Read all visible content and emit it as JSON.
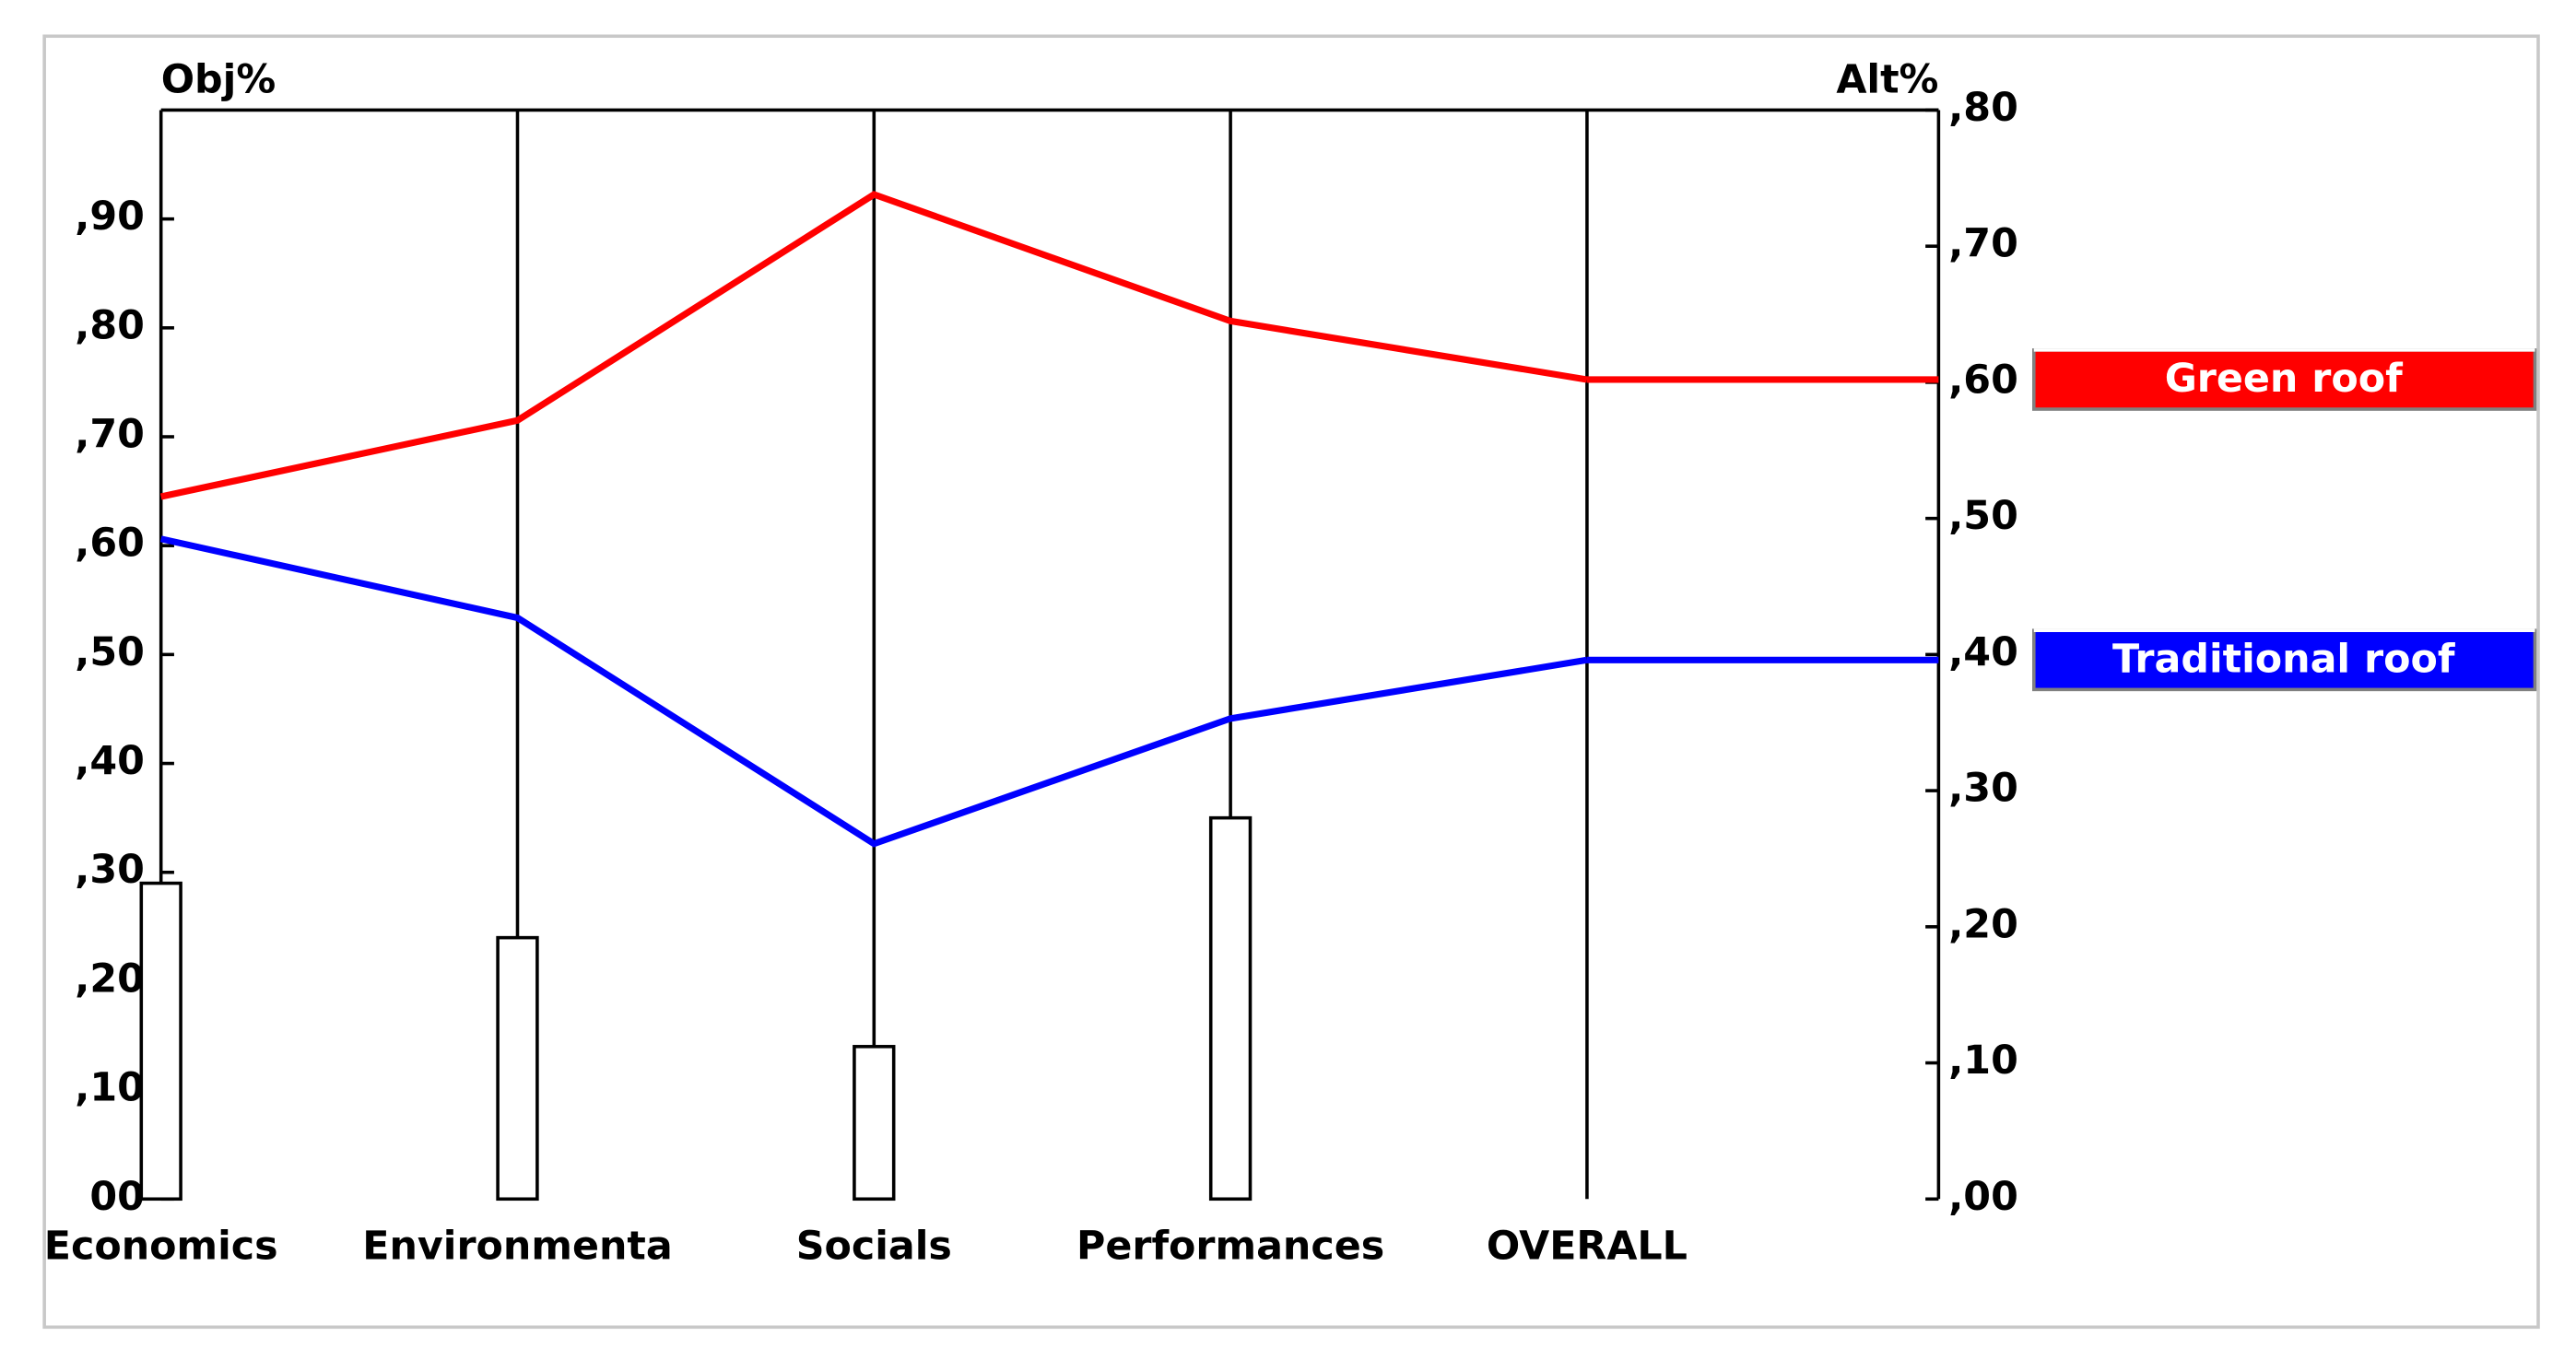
{
  "chart_data": {
    "type": "line",
    "y_label": "Obj%",
    "y2_label": "Alt%",
    "categories": [
      "Economics",
      "Environmenta",
      "Socials",
      "Performances",
      "OVERALL"
    ],
    "weights": [
      0.29,
      0.24,
      0.14,
      0.35,
      null
    ],
    "series": [
      {
        "name": "Green roof",
        "color": "#ff0000",
        "axis": "y2",
        "values": [
          0.516,
          0.572,
          0.738,
          0.645,
          0.602
        ]
      },
      {
        "name": "Traditional roof",
        "color": "#0000ff",
        "axis": "y2",
        "values": [
          0.485,
          0.427,
          0.261,
          0.353,
          0.396
        ]
      }
    ],
    "ylim": [
      0,
      1
    ],
    "yticks": [
      {
        "value": 0,
        "label": "00"
      },
      {
        "value": 0.1,
        "label": ",10"
      },
      {
        "value": 0.2,
        "label": ",20"
      },
      {
        "value": 0.3,
        "label": ",30"
      },
      {
        "value": 0.4,
        "label": ",40"
      },
      {
        "value": 0.5,
        "label": ",50"
      },
      {
        "value": 0.6,
        "label": ",60"
      },
      {
        "value": 0.7,
        "label": ",70"
      },
      {
        "value": 0.8,
        "label": ",80"
      },
      {
        "value": 0.9,
        "label": ",90"
      }
    ],
    "y2lim": [
      0,
      0.8
    ],
    "y2ticks": [
      {
        "value": 0,
        "label": ",00"
      },
      {
        "value": 0.1,
        "label": ",10"
      },
      {
        "value": 0.2,
        "label": ",20"
      },
      {
        "value": 0.3,
        "label": ",30"
      },
      {
        "value": 0.4,
        "label": ",40"
      },
      {
        "value": 0.5,
        "label": ",50"
      },
      {
        "value": 0.6,
        "label": ",60"
      },
      {
        "value": 0.7,
        "label": ",70"
      },
      {
        "value": 0.8,
        "label": ",80"
      }
    ]
  }
}
